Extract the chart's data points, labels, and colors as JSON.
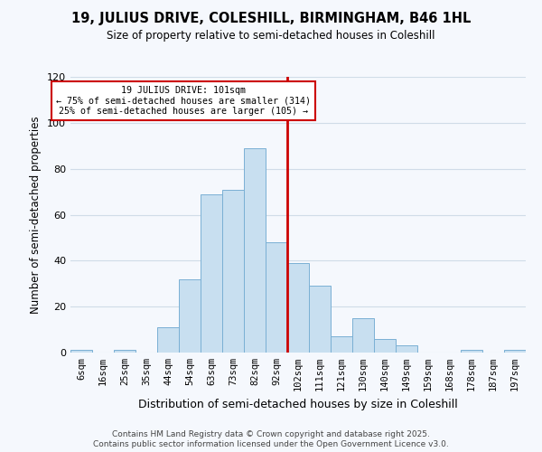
{
  "title": "19, JULIUS DRIVE, COLESHILL, BIRMINGHAM, B46 1HL",
  "subtitle": "Size of property relative to semi-detached houses in Coleshill",
  "xlabel": "Distribution of semi-detached houses by size in Coleshill",
  "ylabel": "Number of semi-detached properties",
  "bin_labels": [
    "6sqm",
    "16sqm",
    "25sqm",
    "35sqm",
    "44sqm",
    "54sqm",
    "63sqm",
    "73sqm",
    "82sqm",
    "92sqm",
    "102sqm",
    "111sqm",
    "121sqm",
    "130sqm",
    "140sqm",
    "149sqm",
    "159sqm",
    "168sqm",
    "178sqm",
    "187sqm",
    "197sqm"
  ],
  "bar_heights": [
    1,
    0,
    1,
    0,
    11,
    32,
    69,
    71,
    89,
    48,
    39,
    29,
    7,
    15,
    6,
    3,
    0,
    0,
    1,
    0,
    1
  ],
  "bar_color": "#c8dff0",
  "bar_edge_color": "#7ab0d4",
  "vline_color": "#cc0000",
  "annotation_title": "19 JULIUS DRIVE: 101sqm",
  "annotation_line1": "← 75% of semi-detached houses are smaller (314)",
  "annotation_line2": "25% of semi-detached houses are larger (105) →",
  "annotation_box_color": "#ffffff",
  "annotation_box_edge": "#cc0000",
  "ylim": [
    0,
    120
  ],
  "yticks": [
    0,
    20,
    40,
    60,
    80,
    100,
    120
  ],
  "footer1": "Contains HM Land Registry data © Crown copyright and database right 2025.",
  "footer2": "Contains public sector information licensed under the Open Government Licence v3.0.",
  "bg_color": "#f5f8fd",
  "grid_color": "#d0dce8"
}
